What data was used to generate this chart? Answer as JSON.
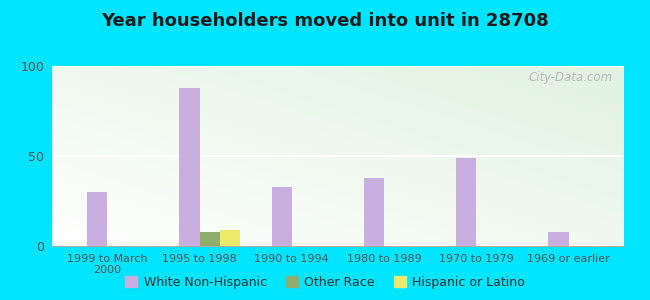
{
  "title": "Year householders moved into unit in 28708",
  "categories": [
    "1999 to March\n2000",
    "1995 to 1998",
    "1990 to 1994",
    "1980 to 1989",
    "1970 to 1979",
    "1969 or earlier"
  ],
  "white_non_hispanic": [
    30,
    88,
    33,
    38,
    49,
    8
  ],
  "other_race": [
    0,
    8,
    0,
    0,
    0,
    0
  ],
  "hispanic_or_latino": [
    0,
    9,
    0,
    0,
    0,
    0
  ],
  "white_color": "#c9aee0",
  "other_race_color": "#8fae6e",
  "hispanic_color": "#ede96a",
  "background_outer": "#00e5ff",
  "ylim": [
    0,
    100
  ],
  "yticks": [
    0,
    50,
    100
  ],
  "bar_width": 0.22,
  "watermark": "City-Data.com"
}
